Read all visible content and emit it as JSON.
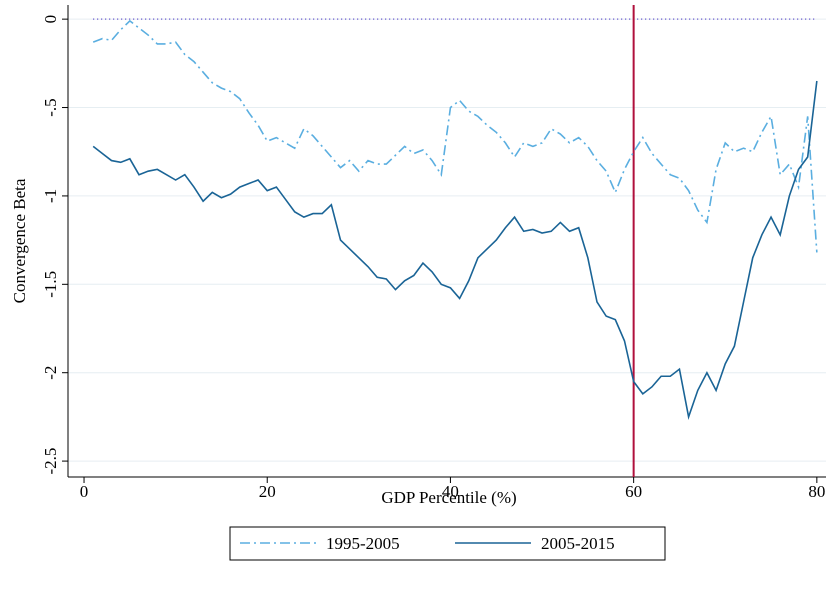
{
  "chart_data": {
    "type": "line",
    "x_label": "GDP Percentile (%)",
    "y_label": "Convergence Beta",
    "x": [
      1,
      2,
      3,
      4,
      5,
      6,
      7,
      8,
      9,
      10,
      11,
      12,
      13,
      14,
      15,
      16,
      17,
      18,
      19,
      20,
      21,
      22,
      23,
      24,
      25,
      26,
      27,
      28,
      29,
      30,
      31,
      32,
      33,
      34,
      35,
      36,
      37,
      38,
      39,
      40,
      41,
      42,
      43,
      44,
      45,
      46,
      47,
      48,
      49,
      50,
      51,
      52,
      53,
      54,
      55,
      56,
      57,
      58,
      59,
      60,
      61,
      62,
      63,
      64,
      65,
      66,
      67,
      68,
      69,
      70,
      71,
      72,
      73,
      74,
      75,
      76,
      77,
      78,
      79,
      80
    ],
    "series": [
      {
        "name": "1995-2005",
        "color": "#5aaee0",
        "dash": "10 4 2 4",
        "values": [
          -0.13,
          -0.11,
          -0.12,
          -0.06,
          -0.01,
          -0.05,
          -0.09,
          -0.14,
          -0.14,
          -0.13,
          -0.2,
          -0.24,
          -0.3,
          -0.36,
          -0.39,
          -0.41,
          -0.45,
          -0.53,
          -0.6,
          -0.69,
          -0.67,
          -0.7,
          -0.73,
          -0.62,
          -0.66,
          -0.72,
          -0.78,
          -0.84,
          -0.8,
          -0.86,
          -0.8,
          -0.82,
          -0.82,
          -0.77,
          -0.72,
          -0.76,
          -0.74,
          -0.8,
          -0.88,
          -0.5,
          -0.46,
          -0.52,
          -0.55,
          -0.6,
          -0.64,
          -0.7,
          -0.78,
          -0.7,
          -0.72,
          -0.7,
          -0.62,
          -0.65,
          -0.7,
          -0.67,
          -0.72,
          -0.8,
          -0.86,
          -0.98,
          -0.85,
          -0.75,
          -0.67,
          -0.76,
          -0.82,
          -0.88,
          -0.9,
          -0.97,
          -1.08,
          -1.15,
          -0.85,
          -0.7,
          -0.75,
          -0.73,
          -0.75,
          -0.64,
          -0.55,
          -0.88,
          -0.82,
          -0.95,
          -0.55,
          -1.32
        ]
      },
      {
        "name": "2005-2015",
        "color": "#1a6496",
        "dash": "",
        "values": [
          -0.72,
          -0.76,
          -0.8,
          -0.81,
          -0.79,
          -0.88,
          -0.86,
          -0.85,
          -0.88,
          -0.91,
          -0.88,
          -0.95,
          -1.03,
          -0.98,
          -1.01,
          -0.99,
          -0.95,
          -0.93,
          -0.91,
          -0.97,
          -0.95,
          -1.02,
          -1.09,
          -1.12,
          -1.1,
          -1.1,
          -1.05,
          -1.25,
          -1.3,
          -1.35,
          -1.4,
          -1.46,
          -1.47,
          -1.53,
          -1.48,
          -1.45,
          -1.38,
          -1.43,
          -1.5,
          -1.52,
          -1.58,
          -1.48,
          -1.35,
          -1.3,
          -1.25,
          -1.18,
          -1.12,
          -1.2,
          -1.19,
          -1.21,
          -1.2,
          -1.15,
          -1.2,
          -1.18,
          -1.35,
          -1.6,
          -1.68,
          -1.7,
          -1.82,
          -2.05,
          -2.12,
          -2.08,
          -2.02,
          -2.02,
          -1.98,
          -2.25,
          -2.1,
          -2.0,
          -2.1,
          -1.95,
          -1.85,
          -1.6,
          -1.35,
          -1.22,
          -1.12,
          -1.22,
          -1.0,
          -0.85,
          -0.78,
          -0.35
        ]
      }
    ],
    "xlim": [
      -1.75,
      81
    ],
    "xticks": [
      0,
      20,
      40,
      60,
      80
    ],
    "ylim": [
      -2.59,
      0.08
    ],
    "yticks": [
      0,
      {
        "value": -0.5,
        "label": "-.5"
      },
      -1,
      -1.5,
      -2,
      -2.5
    ],
    "grid": true,
    "vline": {
      "value": 60,
      "color": "#b0103c"
    },
    "hline": {
      "value": 0,
      "color": "#6a5acd"
    },
    "legend": "bottom"
  }
}
